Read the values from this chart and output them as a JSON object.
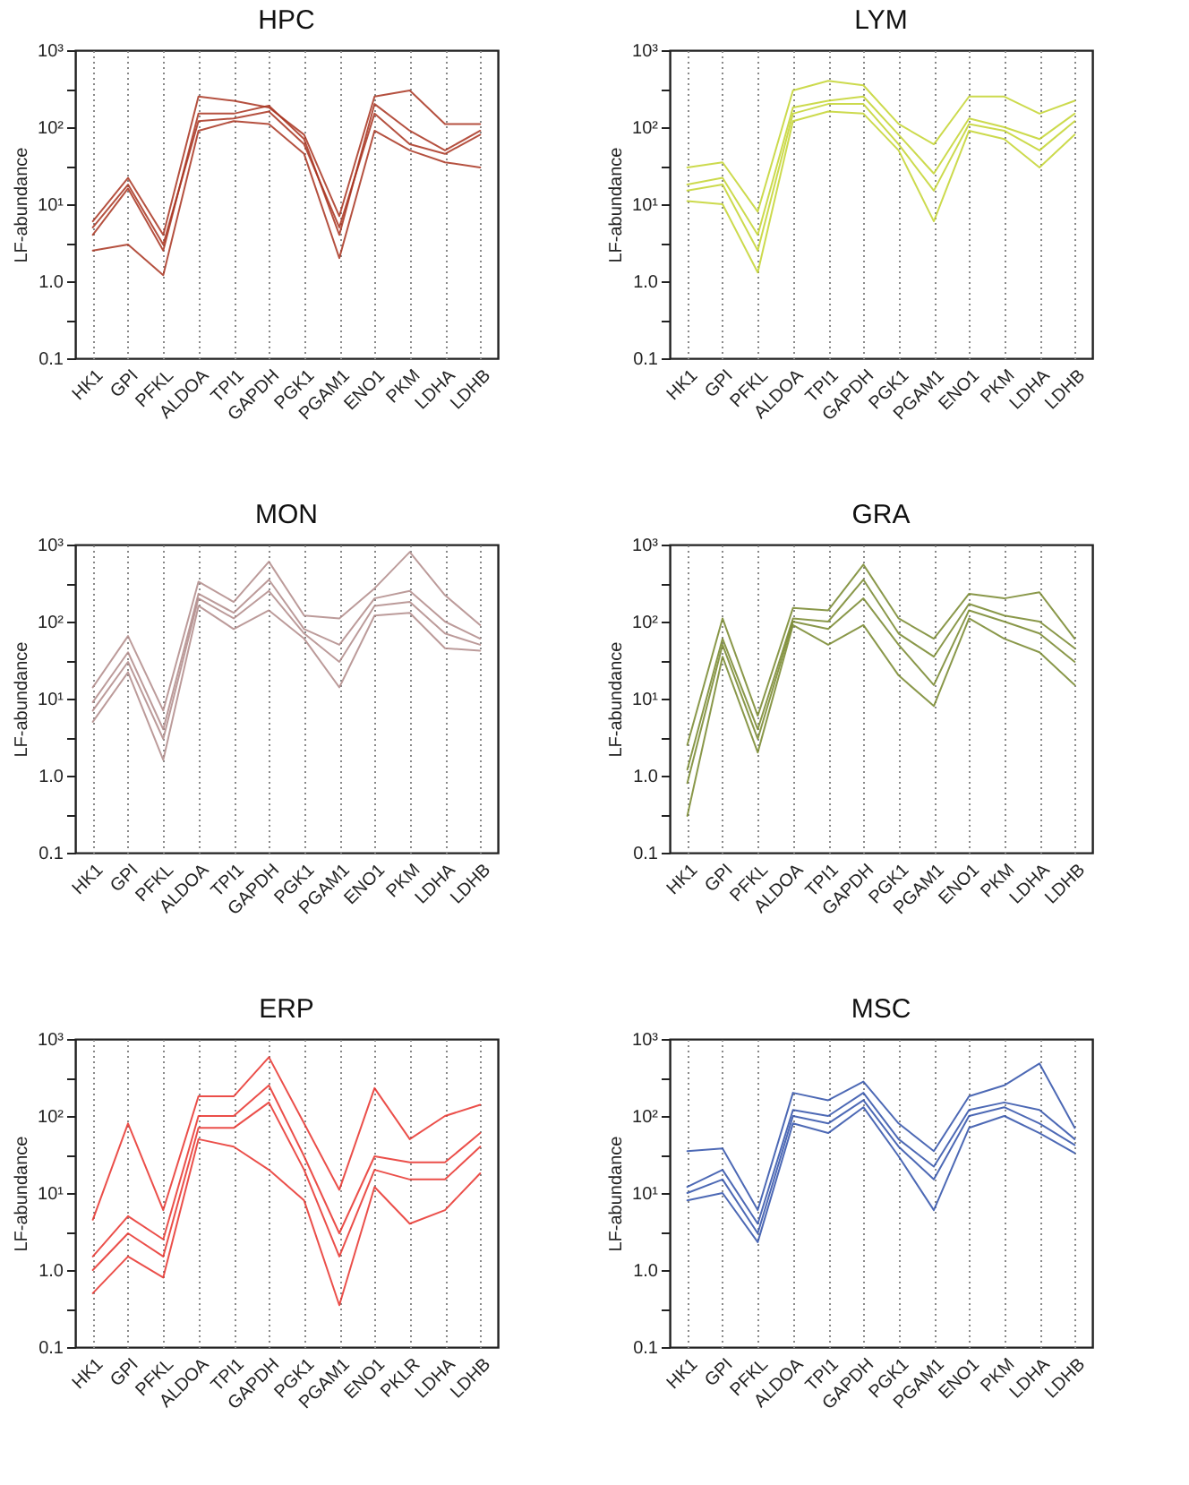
{
  "chart_data": [
    {
      "type": "line",
      "title": "HPC",
      "ylabel": "LF-abundance",
      "categories": [
        "HK1",
        "GPI",
        "PFKL",
        "ALDOA",
        "TPI1",
        "GAPDH",
        "PGK1",
        "PGAM1",
        "ENO1",
        "PKM",
        "LDHA",
        "LDHB"
      ],
      "log": "y",
      "ylim": [
        0.1,
        1000
      ],
      "yticks": [
        {
          "value": 0.1,
          "label": "0.1"
        },
        {
          "value": 0.3,
          "label": null
        },
        {
          "value": 1,
          "label": "1.0"
        },
        {
          "value": 3,
          "label": null
        },
        {
          "value": 10,
          "label": "10¹"
        },
        {
          "value": 30,
          "label": null
        },
        {
          "value": 100,
          "label": "10²"
        },
        {
          "value": 300,
          "label": null
        },
        {
          "value": 1000,
          "label": "10³"
        }
      ],
      "grid": "x",
      "line_style": "solid",
      "series": [
        {
          "color": "#a8321f",
          "values": [
            6,
            22,
            4,
            250,
            220,
            180,
            80,
            7,
            250,
            300,
            110,
            110
          ]
        },
        {
          "color": "#a8321f",
          "values": [
            4,
            16,
            2.5,
            150,
            150,
            190,
            70,
            4,
            200,
            90,
            50,
            90
          ]
        },
        {
          "color": "#a8321f",
          "values": [
            2.5,
            3,
            1.2,
            90,
            120,
            110,
            45,
            2,
            90,
            50,
            35,
            30
          ]
        },
        {
          "color": "#a8321f",
          "values": [
            5,
            18,
            3,
            120,
            130,
            160,
            60,
            5,
            150,
            60,
            45,
            80
          ]
        }
      ]
    },
    {
      "type": "line",
      "title": "LYM",
      "ylabel": "LF-abundance",
      "categories": [
        "HK1",
        "GPI",
        "PFKL",
        "ALDOA",
        "TPI1",
        "GAPDH",
        "PGK1",
        "PGAM1",
        "ENO1",
        "PKM",
        "LDHA",
        "LDHB"
      ],
      "log": "y",
      "ylim": [
        0.1,
        1000
      ],
      "yticks": [
        {
          "value": 0.1,
          "label": "0.1"
        },
        {
          "value": 0.3,
          "label": null
        },
        {
          "value": 1,
          "label": "1.0"
        },
        {
          "value": 3,
          "label": null
        },
        {
          "value": 10,
          "label": "10¹"
        },
        {
          "value": 30,
          "label": null
        },
        {
          "value": 100,
          "label": "10²"
        },
        {
          "value": 300,
          "label": null
        },
        {
          "value": 1000,
          "label": "10³"
        }
      ],
      "grid": "x",
      "line_style": "solid",
      "series": [
        {
          "color": "#c3d42e",
          "values": [
            30,
            35,
            8,
            300,
            400,
            350,
            110,
            60,
            250,
            250,
            150,
            220
          ]
        },
        {
          "color": "#c3d42e",
          "values": [
            18,
            22,
            4,
            180,
            220,
            250,
            80,
            25,
            130,
            100,
            70,
            150
          ]
        },
        {
          "color": "#c3d42e",
          "values": [
            11,
            10,
            1.3,
            120,
            160,
            150,
            50,
            6,
            90,
            70,
            30,
            80
          ]
        },
        {
          "color": "#c3d42e",
          "values": [
            15,
            18,
            2.5,
            150,
            200,
            200,
            60,
            15,
            110,
            90,
            50,
            120
          ]
        }
      ]
    },
    {
      "type": "line",
      "title": "MON",
      "ylabel": "LF-abundance",
      "categories": [
        "HK1",
        "GPI",
        "PFKL",
        "ALDOA",
        "TPI1",
        "GAPDH",
        "PGK1",
        "PGAM1",
        "ENO1",
        "PKM",
        "LDHA",
        "LDHB"
      ],
      "log": "y",
      "ylim": [
        0.1,
        1000
      ],
      "yticks": [
        {
          "value": 0.1,
          "label": "0.1"
        },
        {
          "value": 0.3,
          "label": null
        },
        {
          "value": 1,
          "label": "1.0"
        },
        {
          "value": 3,
          "label": null
        },
        {
          "value": 10,
          "label": "10¹"
        },
        {
          "value": 30,
          "label": null
        },
        {
          "value": 100,
          "label": "10²"
        },
        {
          "value": 300,
          "label": null
        },
        {
          "value": 1000,
          "label": "10³"
        }
      ],
      "grid": "x",
      "line_style": "solid",
      "series": [
        {
          "color": "#b08a88",
          "values": [
            14,
            65,
            7,
            330,
            180,
            600,
            120,
            110,
            270,
            800,
            220,
            90
          ]
        },
        {
          "color": "#b08a88",
          "values": [
            9,
            40,
            4,
            230,
            130,
            350,
            80,
            50,
            200,
            250,
            100,
            60
          ]
        },
        {
          "color": "#b08a88",
          "values": [
            5,
            22,
            1.6,
            160,
            80,
            140,
            60,
            14,
            120,
            130,
            45,
            42
          ]
        },
        {
          "color": "#b08a88",
          "values": [
            7,
            30,
            3,
            200,
            110,
            250,
            70,
            30,
            160,
            180,
            70,
            50
          ]
        }
      ]
    },
    {
      "type": "line",
      "title": "GRA",
      "ylabel": "LF-abundance",
      "categories": [
        "HK1",
        "GPI",
        "PFKL",
        "ALDOA",
        "TPI1",
        "GAPDH",
        "PGK1",
        "PGAM1",
        "ENO1",
        "PKM",
        "LDHA",
        "LDHB"
      ],
      "log": "y",
      "ylim": [
        0.1,
        1000
      ],
      "yticks": [
        {
          "value": 0.1,
          "label": "0.1"
        },
        {
          "value": 0.3,
          "label": null
        },
        {
          "value": 1,
          "label": "1.0"
        },
        {
          "value": 3,
          "label": null
        },
        {
          "value": 10,
          "label": "10¹"
        },
        {
          "value": 30,
          "label": null
        },
        {
          "value": 100,
          "label": "10²"
        },
        {
          "value": 300,
          "label": null
        },
        {
          "value": 1000,
          "label": "10³"
        }
      ],
      "grid": "x",
      "line_style": "solid",
      "series": [
        {
          "color": "#76862a",
          "values": [
            2.5,
            110,
            6,
            150,
            140,
            550,
            110,
            60,
            230,
            200,
            240,
            60
          ]
        },
        {
          "color": "#76862a",
          "values": [
            1.2,
            60,
            4,
            110,
            100,
            350,
            70,
            35,
            170,
            120,
            100,
            45
          ]
        },
        {
          "color": "#76862a",
          "values": [
            0.3,
            35,
            2,
            90,
            50,
            90,
            20,
            8,
            110,
            60,
            40,
            15
          ]
        },
        {
          "color": "#76862a",
          "values": [
            0.8,
            50,
            3,
            100,
            80,
            200,
            50,
            15,
            140,
            100,
            70,
            30
          ]
        }
      ]
    },
    {
      "type": "line",
      "title": "ERP",
      "ylabel": "LF-abundance",
      "categories": [
        "HK1",
        "GPI",
        "PFKL",
        "ALDOA",
        "TPI1",
        "GAPDH",
        "PGK1",
        "PGAM1",
        "ENO1",
        "PKLR",
        "LDHA",
        "LDHB"
      ],
      "log": "y",
      "ylim": [
        0.1,
        1000
      ],
      "yticks": [
        {
          "value": 0.1,
          "label": "0.1"
        },
        {
          "value": 0.3,
          "label": null
        },
        {
          "value": 1,
          "label": "1.0"
        },
        {
          "value": 3,
          "label": null
        },
        {
          "value": 10,
          "label": "10¹"
        },
        {
          "value": 30,
          "label": null
        },
        {
          "value": 100,
          "label": "10²"
        },
        {
          "value": 300,
          "label": null
        },
        {
          "value": 1000,
          "label": "10³"
        }
      ],
      "grid": "x",
      "line_style": "solid",
      "series": [
        {
          "color": "#e8302a",
          "values": [
            4.5,
            80,
            6,
            180,
            180,
            580,
            80,
            11,
            230,
            50,
            100,
            140
          ]
        },
        {
          "color": "#e8302a",
          "values": [
            1.5,
            5,
            2.5,
            100,
            100,
            250,
            30,
            3,
            30,
            25,
            25,
            60
          ]
        },
        {
          "color": "#e8302a",
          "values": [
            0.5,
            1.5,
            0.8,
            50,
            40,
            20,
            8,
            0.35,
            12,
            4,
            6,
            18
          ]
        },
        {
          "color": "#e8302a",
          "values": [
            1,
            3,
            1.5,
            70,
            70,
            150,
            20,
            1.5,
            20,
            15,
            15,
            40
          ]
        }
      ]
    },
    {
      "type": "line",
      "title": "MSC",
      "ylabel": "LF-abundance",
      "categories": [
        "HK1",
        "GPI",
        "PFKL",
        "ALDOA",
        "TPI1",
        "GAPDH",
        "PGK1",
        "PGAM1",
        "ENO1",
        "PKM",
        "LDHA",
        "LDHB"
      ],
      "log": "y",
      "ylim": [
        0.1,
        1000
      ],
      "yticks": [
        {
          "value": 0.1,
          "label": "0.1"
        },
        {
          "value": 0.3,
          "label": null
        },
        {
          "value": 1,
          "label": "1.0"
        },
        {
          "value": 3,
          "label": null
        },
        {
          "value": 10,
          "label": "10¹"
        },
        {
          "value": 30,
          "label": null
        },
        {
          "value": 100,
          "label": "10²"
        },
        {
          "value": 300,
          "label": null
        },
        {
          "value": 1000,
          "label": "10³"
        }
      ],
      "grid": "x",
      "line_style": "solid",
      "series": [
        {
          "color": "#2e4fa8",
          "values": [
            35,
            38,
            6,
            200,
            160,
            280,
            80,
            35,
            180,
            250,
            480,
            70
          ]
        },
        {
          "color": "#2e4fa8",
          "values": [
            12,
            20,
            4,
            120,
            100,
            200,
            50,
            22,
            120,
            150,
            120,
            50
          ]
        },
        {
          "color": "#2e4fa8",
          "values": [
            8,
            10,
            2.3,
            80,
            60,
            130,
            30,
            6,
            70,
            100,
            60,
            33
          ]
        },
        {
          "color": "#2e4fa8",
          "values": [
            10,
            15,
            3,
            100,
            80,
            160,
            40,
            15,
            100,
            130,
            80,
            42
          ]
        }
      ]
    }
  ]
}
